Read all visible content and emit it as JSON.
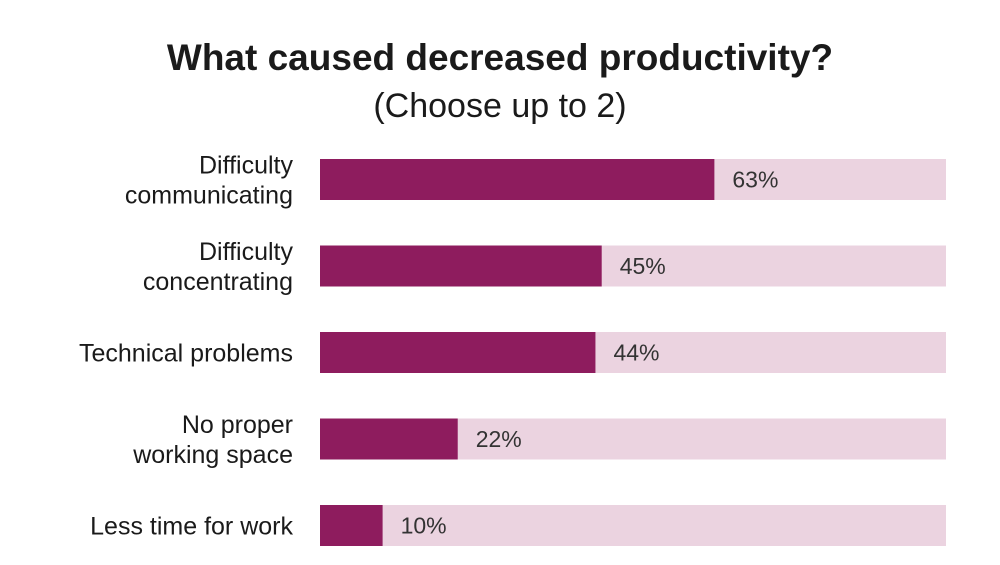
{
  "chart_data": {
    "type": "bar",
    "orientation": "horizontal",
    "title": "What caused decreased productivity?",
    "subtitle": "(Choose up to 2)",
    "categories": [
      [
        "Difficulty",
        "communicating"
      ],
      [
        "Difficulty",
        "concentrating"
      ],
      [
        "Technical problems"
      ],
      [
        "No proper",
        "working space"
      ],
      [
        "Less time for work"
      ]
    ],
    "values": [
      63,
      45,
      44,
      22,
      10
    ],
    "data_labels": [
      "63%",
      "45%",
      "44%",
      "22%",
      "10%"
    ],
    "xlim": [
      0,
      100
    ],
    "grid": false,
    "legend": "none",
    "colors": {
      "bar": "#8e1c5e",
      "track": "#ebd3e0"
    }
  }
}
